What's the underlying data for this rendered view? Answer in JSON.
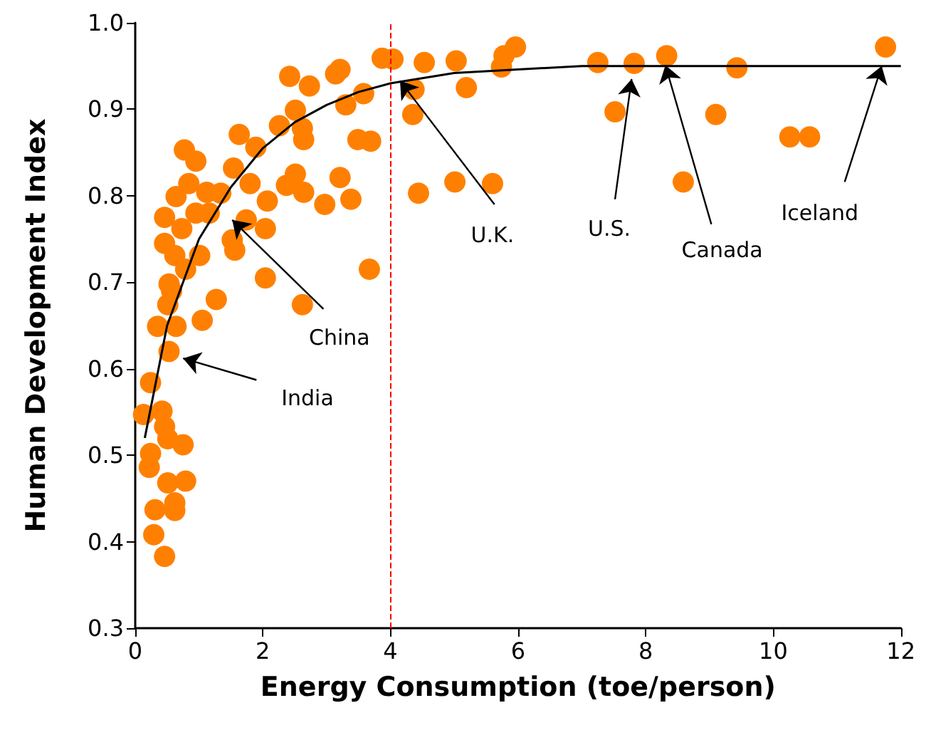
{
  "chart_data": {
    "type": "scatter",
    "xlabel": "Energy Consumption (toe/person)",
    "ylabel": "Human Development Index",
    "xlim": [
      0,
      12
    ],
    "xticks": [
      0,
      2,
      4,
      6,
      8,
      10,
      12
    ],
    "ylim": [
      0.3,
      1.0
    ],
    "yticks": [
      0.3,
      0.4,
      0.5,
      0.6,
      0.7,
      0.8,
      0.9,
      {
        "value": 1,
        "label": "1.0"
      }
    ],
    "grid": false,
    "marker": "circle",
    "series": [
      {
        "color": "#ff8000",
        "x": [
          7.25,
          7.82,
          8.33,
          9.43,
          7.52,
          9.1,
          8.59,
          10.26,
          10.57,
          11.76,
          3.87,
          4.04,
          4.53,
          5.03,
          5.78,
          5.96,
          5.74,
          5.19,
          4.37,
          4.35,
          4.44,
          5.01,
          5.6,
          3.67,
          3.21,
          3.14,
          2.42,
          2.73,
          3.3,
          3.58,
          2.51,
          2.26,
          2.62,
          2.64,
          1.63,
          1.89,
          3.49,
          3.69,
          1.54,
          1.8,
          2.51,
          2.37,
          2.64,
          3.21,
          2.97,
          3.38,
          2.07,
          2.04,
          1.56,
          1.52,
          2.04,
          2.62,
          1.74,
          0.77,
          0.95,
          0.84,
          0.64,
          1.12,
          1.34,
          0.46,
          0.95,
          1.16,
          0.73,
          0.46,
          0.62,
          1.01,
          0.79,
          0.53,
          0.57,
          0.51,
          1.27,
          1.05,
          0.35,
          0.64,
          0.53,
          0.24,
          0.13,
          0.42,
          0.46,
          0.51,
          0.24,
          0.75,
          0.22,
          0.51,
          0.79,
          0.31,
          0.62,
          0.62,
          0.29,
          0.46
        ],
        "values": [
          0.954,
          0.953,
          0.962,
          0.948,
          0.897,
          0.894,
          0.816,
          0.868,
          0.868,
          0.972,
          0.959,
          0.958,
          0.954,
          0.956,
          0.962,
          0.972,
          0.949,
          0.925,
          0.923,
          0.894,
          0.803,
          0.816,
          0.814,
          0.715,
          0.946,
          0.941,
          0.938,
          0.927,
          0.905,
          0.918,
          0.899,
          0.881,
          0.878,
          0.865,
          0.871,
          0.856,
          0.865,
          0.863,
          0.832,
          0.814,
          0.825,
          0.812,
          0.804,
          0.821,
          0.79,
          0.796,
          0.794,
          0.762,
          0.737,
          0.749,
          0.705,
          0.674,
          0.772,
          0.853,
          0.84,
          0.814,
          0.799,
          0.804,
          0.803,
          0.775,
          0.78,
          0.78,
          0.762,
          0.745,
          0.731,
          0.731,
          0.715,
          0.698,
          0.69,
          0.674,
          0.68,
          0.656,
          0.649,
          0.649,
          0.62,
          0.584,
          0.547,
          0.551,
          0.533,
          0.519,
          0.502,
          0.512,
          0.486,
          0.468,
          0.47,
          0.437,
          0.445,
          0.436,
          0.408,
          0.383
        ]
      },
      {
        "type": "line",
        "color": "#000000",
        "marker": "none",
        "x": [
          0.15,
          0.5,
          1,
          1.5,
          2,
          2.5,
          3,
          3.5,
          4,
          5,
          6,
          7,
          12
        ],
        "values": [
          0.52,
          0.65,
          0.75,
          0.81,
          0.855,
          0.885,
          0.905,
          0.92,
          0.93,
          0.942,
          0.946,
          0.95,
          0.95
        ]
      }
    ],
    "ref_lines": [
      {
        "axis": "x",
        "value": 4,
        "color": "#ff0000",
        "line_style": "dashed"
      }
    ],
    "annotations": [
      {
        "text": "India",
        "x": 0.75,
        "y": 0.612
      },
      {
        "text": "China",
        "x": 1.52,
        "y": 0.772
      },
      {
        "text": "U.K.",
        "x": 4.15,
        "y": 0.933
      },
      {
        "text": "U.S.",
        "x": 7.78,
        "y": 0.935
      },
      {
        "text": "Canada",
        "x": 8.31,
        "y": 0.951
      },
      {
        "text": "Iceland",
        "x": 11.7,
        "y": 0.95
      }
    ]
  }
}
